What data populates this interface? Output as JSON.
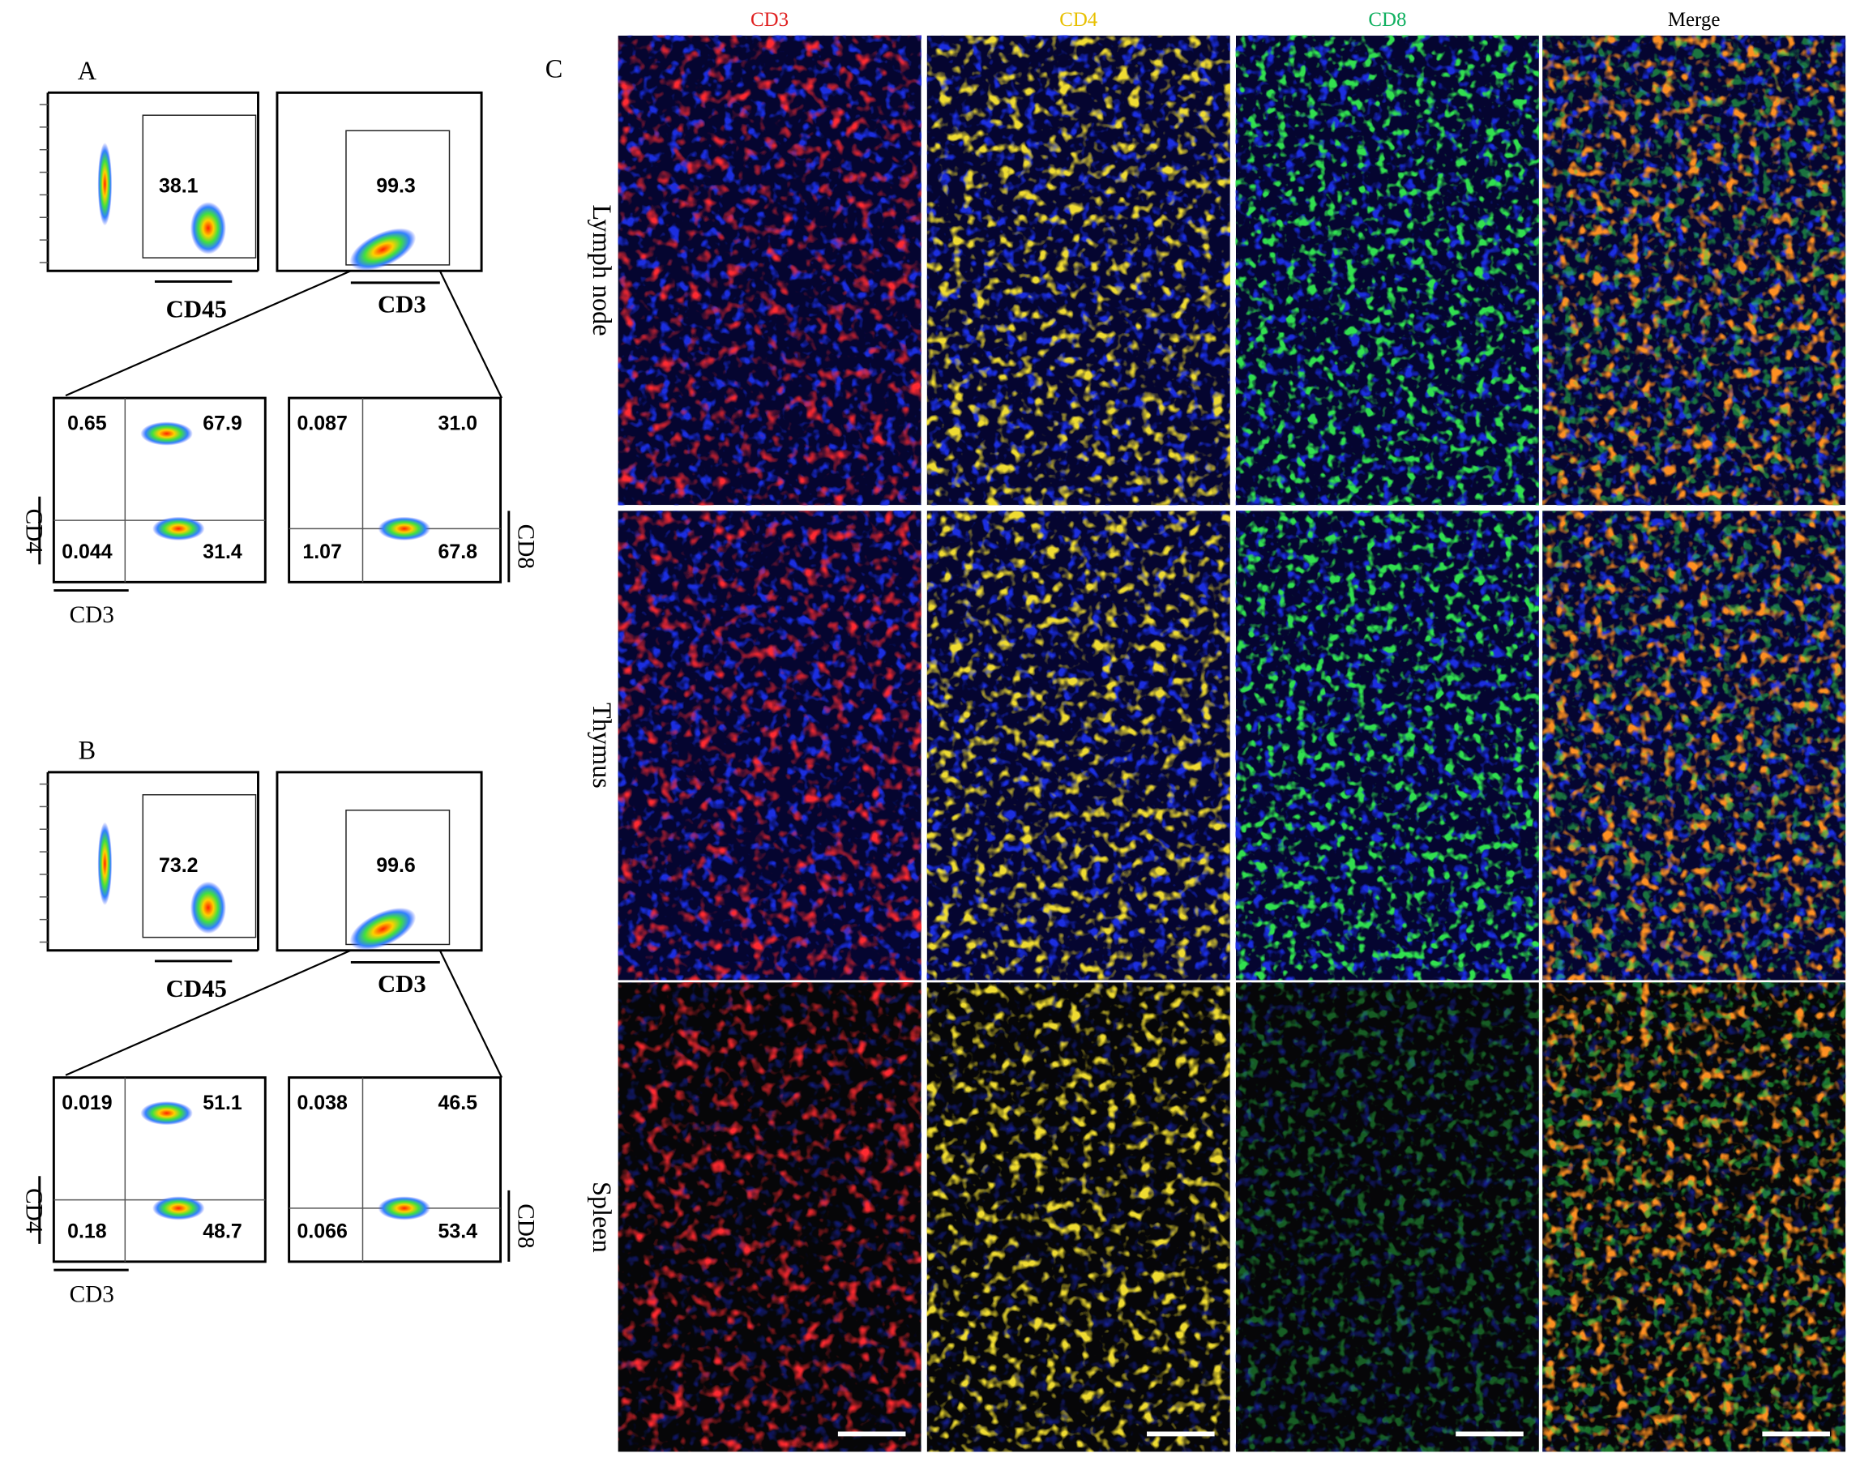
{
  "panel_a": {
    "label": "A",
    "gate_cd45": {
      "value": "38.1",
      "axis": "CD45"
    },
    "gate_cd3": {
      "value": "99.3",
      "axis": "CD3"
    },
    "cd4_plot": {
      "quadrants": [
        "0.65",
        "67.9",
        "0.044",
        "31.4"
      ],
      "y_axis": "CD4",
      "x_axis": "CD3"
    },
    "cd8_plot": {
      "quadrants": [
        "0.087",
        "31.0",
        "1.07",
        "67.8"
      ],
      "y_axis": "CD8"
    }
  },
  "panel_b": {
    "label": "B",
    "gate_cd45": {
      "value": "73.2",
      "axis": "CD45"
    },
    "gate_cd3": {
      "value": "99.6",
      "axis": "CD3"
    },
    "cd4_plot": {
      "quadrants": [
        "0.019",
        "51.1",
        "0.18",
        "48.7"
      ],
      "y_axis": "CD4",
      "x_axis": "CD3"
    },
    "cd8_plot": {
      "quadrants": [
        "0.038",
        "46.5",
        "0.066",
        "53.4"
      ],
      "y_axis": "CD8"
    }
  },
  "panel_c": {
    "label": "C",
    "columns": [
      "CD3",
      "CD4",
      "CD8",
      "Merge"
    ],
    "rows": [
      "Lymph node",
      "Thymus",
      "Spleen"
    ]
  }
}
